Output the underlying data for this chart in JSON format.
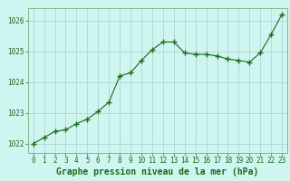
{
  "x": [
    0,
    1,
    2,
    3,
    4,
    5,
    6,
    7,
    8,
    9,
    10,
    11,
    12,
    13,
    14,
    15,
    16,
    17,
    18,
    19,
    20,
    21,
    22,
    23
  ],
  "y": [
    1022.0,
    1022.2,
    1022.4,
    1022.45,
    1022.65,
    1022.8,
    1023.05,
    1023.35,
    1024.2,
    1024.3,
    1024.7,
    1025.05,
    1025.3,
    1025.3,
    1024.95,
    1024.9,
    1024.9,
    1024.85,
    1024.75,
    1024.7,
    1024.65,
    1024.95,
    1025.55,
    1026.2
  ],
  "line_color": "#1a6b1a",
  "marker": "+",
  "marker_size": 4,
  "bg_color": "#cef5f0",
  "grid_color": "#aacfcf",
  "title": "Graphe pression niveau de la mer (hPa)",
  "ylim_min": 1021.7,
  "ylim_max": 1026.4,
  "xlim_min": -0.5,
  "xlim_max": 23.5,
  "yticks": [
    1022,
    1023,
    1024,
    1025,
    1026
  ],
  "xticks": [
    0,
    1,
    2,
    3,
    4,
    5,
    6,
    7,
    8,
    9,
    10,
    11,
    12,
    13,
    14,
    15,
    16,
    17,
    18,
    19,
    20,
    21,
    22,
    23
  ],
  "title_fontsize": 7,
  "tick_fontsize": 5.5,
  "title_color": "#1a6b1a",
  "tick_color": "#1a6b1a",
  "spine_color": "#7aaa7a"
}
